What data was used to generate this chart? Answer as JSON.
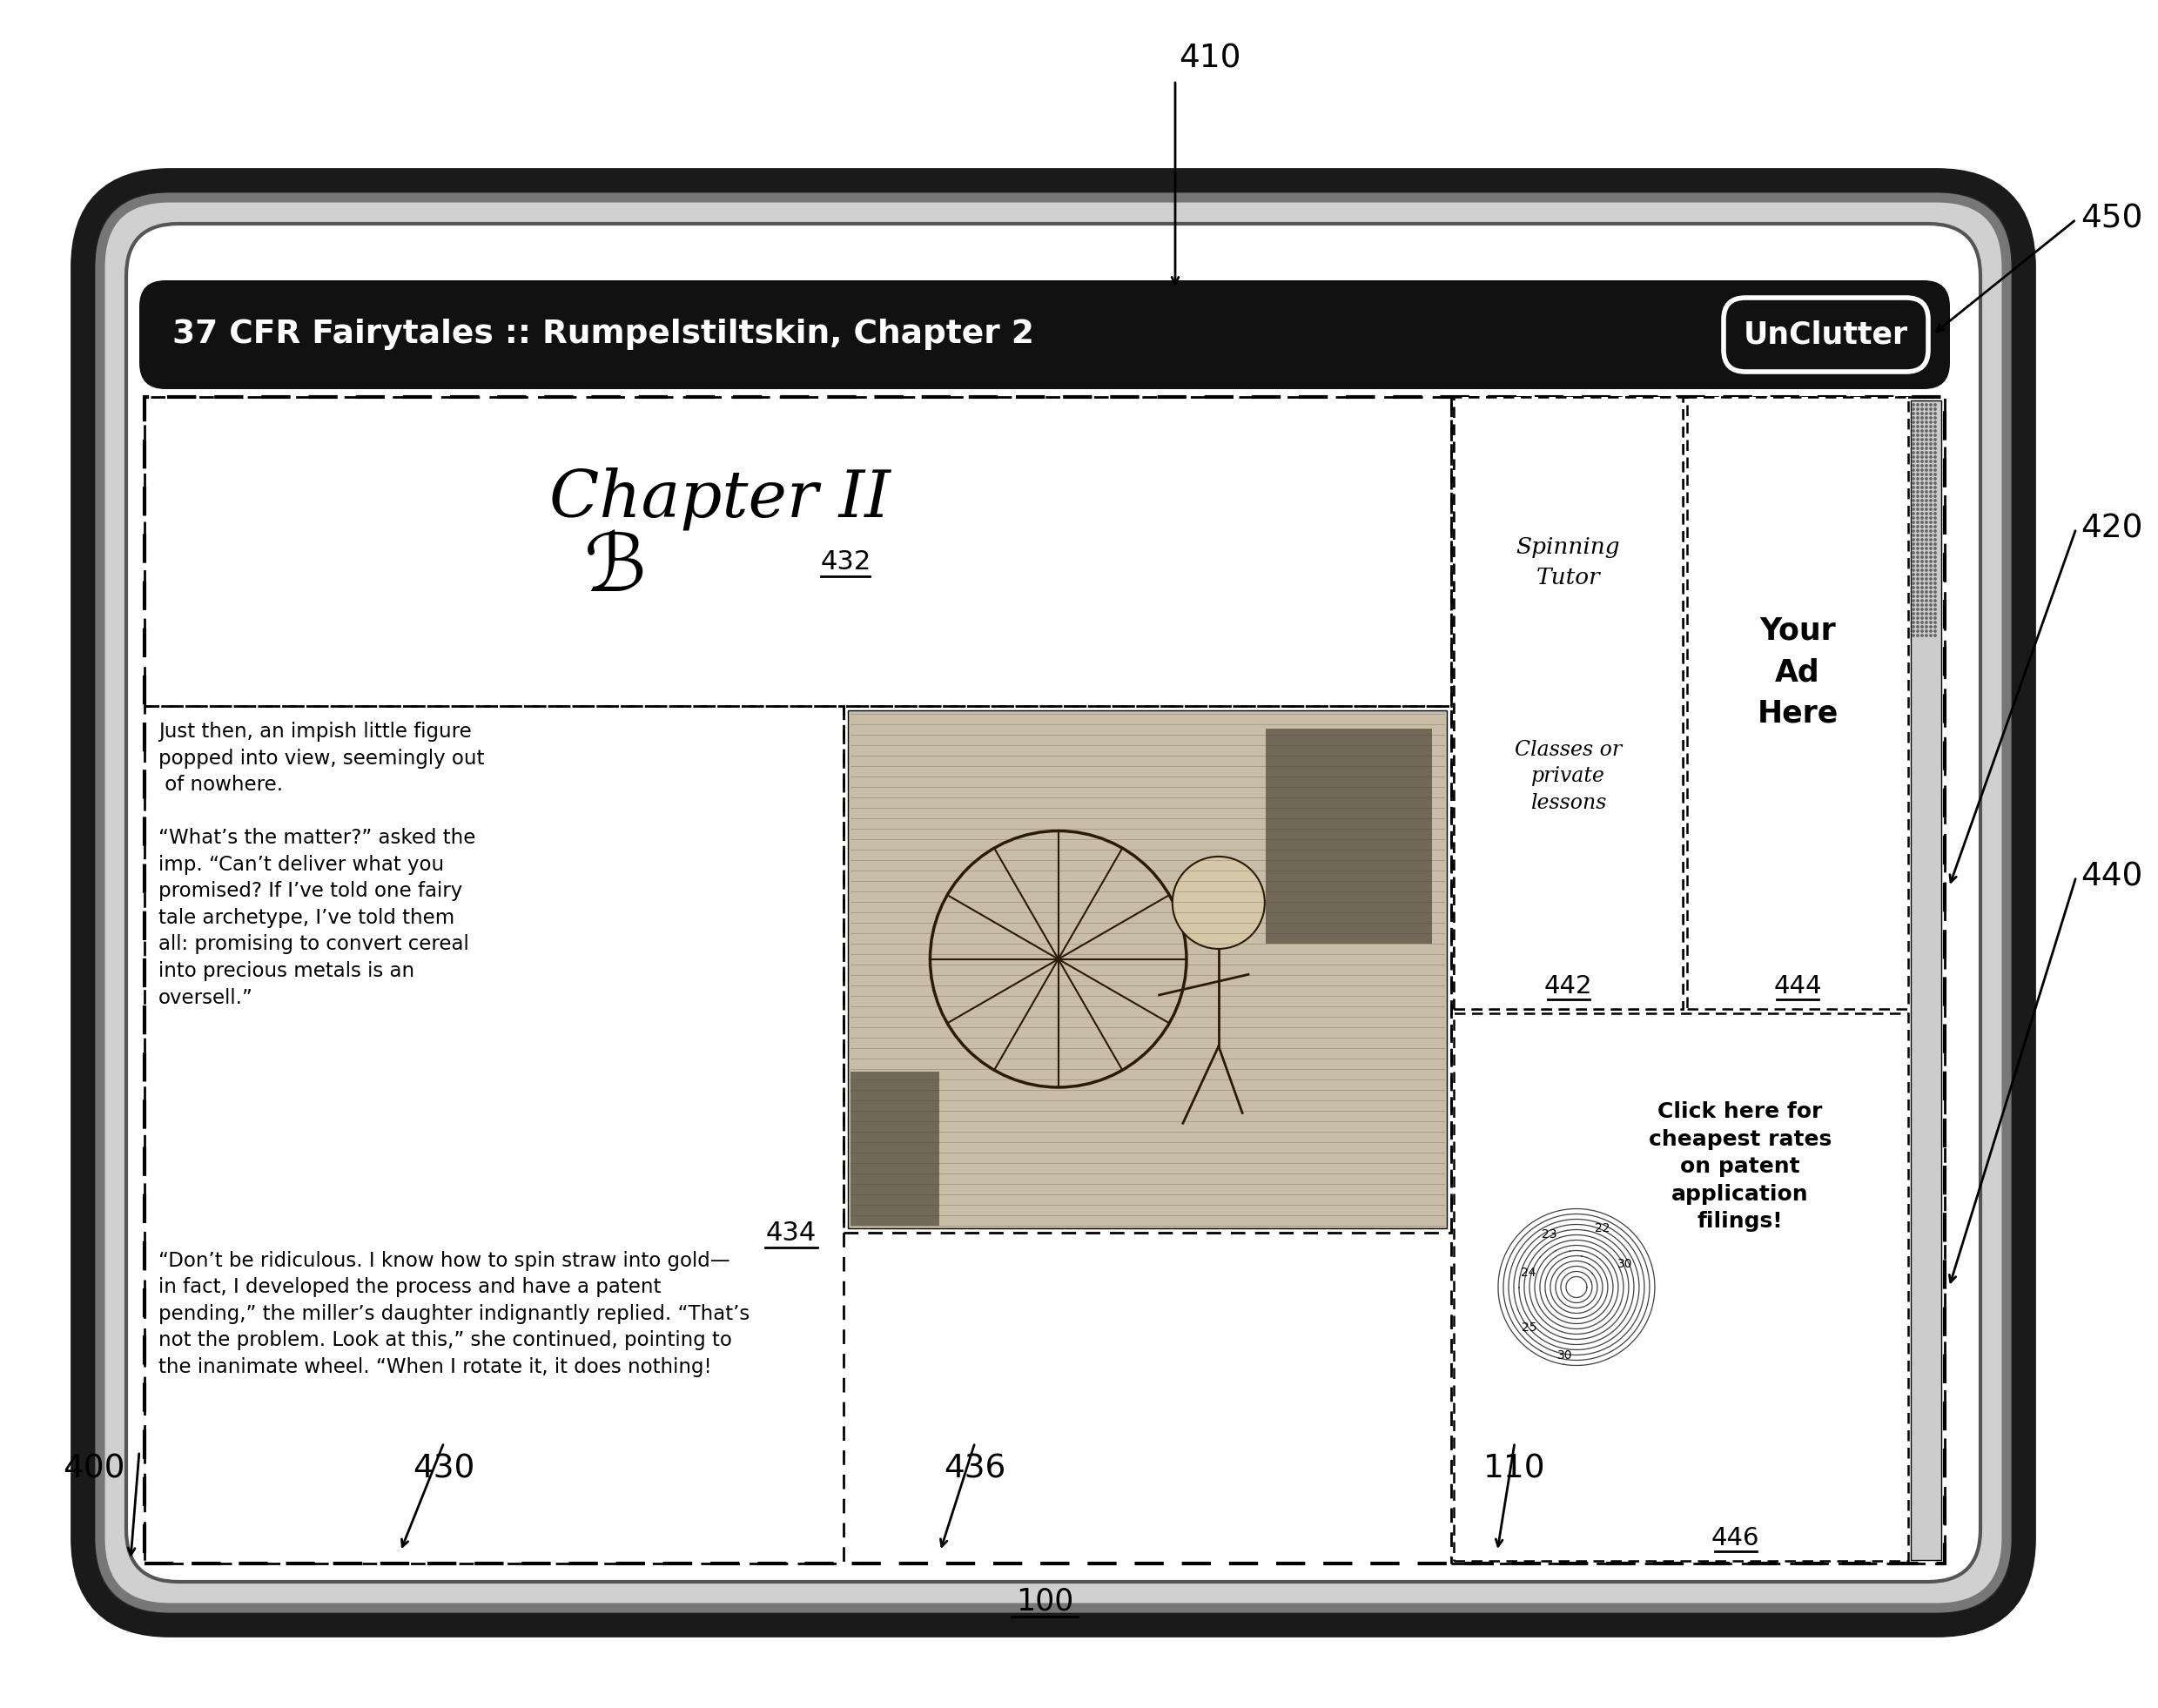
{
  "bg_color": "#ffffff",
  "title_text": "37 CFR Fairytales :: Rumpelstiltskin, Chapter 2",
  "button_text": "UnClutter",
  "chapter_title": "Chapter II",
  "label_432": "432",
  "label_434": "434",
  "label_436": "436",
  "label_442": "442",
  "label_444": "444",
  "label_446": "446",
  "label_100": "100",
  "label_400": "400",
  "label_410": "410",
  "label_420": "420",
  "label_430": "430",
  "label_440": "440",
  "label_450": "450",
  "label_110": "110",
  "ad_text_left_top": "Spinning\nTutor",
  "ad_text_left_bottom": "Classes or\nprivate\nlessons",
  "ad_text_right": "Your\nAd\nHere",
  "ad_bottom_text": "Click here for\ncheapest rates\non patent\napplication\nfilings!",
  "story_text1": "Just then, an impish little figure\npopped into view, seemingly out\n of nowhere.\n\n“What’s the matter?” asked the\nimp. “Can’t deliver what you\npromised? If I’ve told one fairy\ntale archetype, I’ve told them\nall: promising to convert cereal\ninto precious metals is an\noversell.”",
  "story_text2": "“Don’t be ridiculous. I know how to spin straw into gold—\nin fact, I developed the process and have a patent\npending,” the miller’s daughter indignantly replied. “That’s\nnot the problem. Look at this,” she continued, pointing to\nthe inanimate wheel. “When I rotate it, it does nothing!"
}
